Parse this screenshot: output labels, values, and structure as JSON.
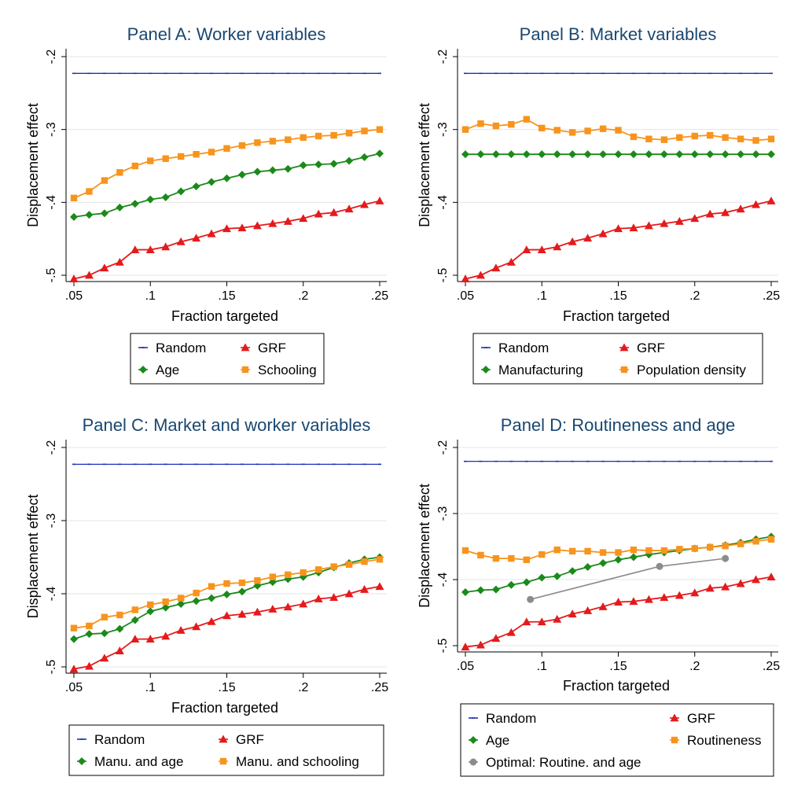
{
  "colors": {
    "Random": "#1f2fb8",
    "GRF": "#e41a1c",
    "Age": "#1a8a1a",
    "Orange": "#f7941d",
    "Optimal": "#8c8c8c",
    "grid": "#e6e6e6",
    "title": "#1a476f"
  },
  "chart_data": [
    {
      "type": "line",
      "title": "Panel A: Worker variables",
      "xlabel": "Fraction targeted",
      "ylabel": "Displacement effect",
      "xlim": [
        0.05,
        0.25
      ],
      "ylim": [
        -0.5,
        -0.2
      ],
      "xticks": [
        ".05",
        ".1",
        ".15",
        ".2",
        ".25"
      ],
      "yticks": [
        "-.2",
        "-.3",
        "-.4",
        "-.5"
      ],
      "legend": {
        "rows": [
          [
            "Random",
            "GRF"
          ],
          [
            "Age",
            "Schooling"
          ]
        ]
      },
      "series": [
        {
          "name": "Random",
          "marker": "dash",
          "color": "Random",
          "x": [
            0.05,
            0.06,
            0.07,
            0.08,
            0.09,
            0.1,
            0.11,
            0.12,
            0.13,
            0.14,
            0.15,
            0.16,
            0.17,
            0.18,
            0.19,
            0.2,
            0.21,
            0.22,
            0.23,
            0.24,
            0.25
          ],
          "y": [
            -0.223,
            -0.223,
            -0.223,
            -0.223,
            -0.223,
            -0.223,
            -0.223,
            -0.223,
            -0.223,
            -0.223,
            -0.223,
            -0.223,
            -0.223,
            -0.223,
            -0.223,
            -0.223,
            -0.223,
            -0.223,
            -0.223,
            -0.223,
            -0.223
          ]
        },
        {
          "name": "GRF",
          "marker": "triangle",
          "color": "GRF",
          "x": [
            0.05,
            0.06,
            0.07,
            0.08,
            0.09,
            0.1,
            0.11,
            0.12,
            0.13,
            0.14,
            0.15,
            0.16,
            0.17,
            0.18,
            0.19,
            0.2,
            0.21,
            0.22,
            0.23,
            0.24,
            0.25
          ],
          "y": [
            -0.505,
            -0.5,
            -0.49,
            -0.482,
            -0.465,
            -0.465,
            -0.461,
            -0.454,
            -0.449,
            -0.443,
            -0.436,
            -0.435,
            -0.432,
            -0.429,
            -0.426,
            -0.422,
            -0.416,
            -0.414,
            -0.409,
            -0.403,
            -0.398
          ]
        },
        {
          "name": "Age",
          "marker": "diamond",
          "color": "Age",
          "x": [
            0.05,
            0.06,
            0.07,
            0.08,
            0.09,
            0.1,
            0.11,
            0.12,
            0.13,
            0.14,
            0.15,
            0.16,
            0.17,
            0.18,
            0.19,
            0.2,
            0.21,
            0.22,
            0.23,
            0.24,
            0.25
          ],
          "y": [
            -0.42,
            -0.417,
            -0.415,
            -0.407,
            -0.402,
            -0.396,
            -0.393,
            -0.385,
            -0.378,
            -0.372,
            -0.367,
            -0.362,
            -0.358,
            -0.356,
            -0.354,
            -0.349,
            -0.348,
            -0.347,
            -0.343,
            -0.338,
            -0.333
          ]
        },
        {
          "name": "Schooling",
          "marker": "square",
          "color": "Orange",
          "x": [
            0.05,
            0.06,
            0.07,
            0.08,
            0.09,
            0.1,
            0.11,
            0.12,
            0.13,
            0.14,
            0.15,
            0.16,
            0.17,
            0.18,
            0.19,
            0.2,
            0.21,
            0.22,
            0.23,
            0.24,
            0.25
          ],
          "y": [
            -0.394,
            -0.385,
            -0.37,
            -0.359,
            -0.35,
            -0.343,
            -0.34,
            -0.337,
            -0.334,
            -0.331,
            -0.326,
            -0.322,
            -0.318,
            -0.316,
            -0.314,
            -0.311,
            -0.309,
            -0.308,
            -0.305,
            -0.302,
            -0.3
          ]
        }
      ]
    },
    {
      "type": "line",
      "title": "Panel B: Market variables",
      "xlabel": "Fraction targeted",
      "ylabel": "Displacement effect",
      "xlim": [
        0.05,
        0.25
      ],
      "ylim": [
        -0.5,
        -0.2
      ],
      "xticks": [
        ".05",
        ".1",
        ".15",
        ".2",
        ".25"
      ],
      "yticks": [
        "-.2",
        "-.3",
        "-.4",
        "-.5"
      ],
      "legend": {
        "rows": [
          [
            "Random",
            "GRF"
          ],
          [
            "Manufacturing",
            "Population density"
          ]
        ]
      },
      "series": [
        {
          "name": "Random",
          "marker": "dash",
          "color": "Random",
          "x": [
            0.05,
            0.06,
            0.07,
            0.08,
            0.09,
            0.1,
            0.11,
            0.12,
            0.13,
            0.14,
            0.15,
            0.16,
            0.17,
            0.18,
            0.19,
            0.2,
            0.21,
            0.22,
            0.23,
            0.24,
            0.25
          ],
          "y": [
            -0.223,
            -0.223,
            -0.223,
            -0.223,
            -0.223,
            -0.223,
            -0.223,
            -0.223,
            -0.223,
            -0.223,
            -0.223,
            -0.223,
            -0.223,
            -0.223,
            -0.223,
            -0.223,
            -0.223,
            -0.223,
            -0.223,
            -0.223,
            -0.223
          ]
        },
        {
          "name": "GRF",
          "marker": "triangle",
          "color": "GRF",
          "x": [
            0.05,
            0.06,
            0.07,
            0.08,
            0.09,
            0.1,
            0.11,
            0.12,
            0.13,
            0.14,
            0.15,
            0.16,
            0.17,
            0.18,
            0.19,
            0.2,
            0.21,
            0.22,
            0.23,
            0.24,
            0.25
          ],
          "y": [
            -0.505,
            -0.5,
            -0.49,
            -0.482,
            -0.465,
            -0.465,
            -0.461,
            -0.454,
            -0.449,
            -0.443,
            -0.436,
            -0.435,
            -0.432,
            -0.429,
            -0.426,
            -0.422,
            -0.416,
            -0.414,
            -0.409,
            -0.403,
            -0.398
          ]
        },
        {
          "name": "Manufacturing",
          "marker": "diamond",
          "color": "Age",
          "x": [
            0.05,
            0.06,
            0.07,
            0.08,
            0.09,
            0.1,
            0.11,
            0.12,
            0.13,
            0.14,
            0.15,
            0.16,
            0.17,
            0.18,
            0.19,
            0.2,
            0.21,
            0.22,
            0.23,
            0.24,
            0.25
          ],
          "y": [
            -0.334,
            -0.334,
            -0.334,
            -0.334,
            -0.334,
            -0.334,
            -0.334,
            -0.334,
            -0.334,
            -0.334,
            -0.334,
            -0.334,
            -0.334,
            -0.334,
            -0.334,
            -0.334,
            -0.334,
            -0.334,
            -0.334,
            -0.334,
            -0.334
          ]
        },
        {
          "name": "Population density",
          "marker": "square",
          "color": "Orange",
          "x": [
            0.05,
            0.06,
            0.07,
            0.08,
            0.09,
            0.1,
            0.11,
            0.12,
            0.13,
            0.14,
            0.15,
            0.16,
            0.17,
            0.18,
            0.19,
            0.2,
            0.21,
            0.22,
            0.23,
            0.24,
            0.25
          ],
          "y": [
            -0.3,
            -0.292,
            -0.295,
            -0.293,
            -0.286,
            -0.298,
            -0.301,
            -0.304,
            -0.302,
            -0.299,
            -0.301,
            -0.31,
            -0.313,
            -0.314,
            -0.311,
            -0.309,
            -0.308,
            -0.311,
            -0.313,
            -0.315,
            -0.313
          ]
        }
      ]
    },
    {
      "type": "line",
      "title": "Panel C: Market and worker variables",
      "xlabel": "Fraction targeted",
      "ylabel": "Displacement effect",
      "xlim": [
        0.05,
        0.25
      ],
      "ylim": [
        -0.5,
        -0.2
      ],
      "xticks": [
        ".05",
        ".1",
        ".15",
        ".2",
        ".25"
      ],
      "yticks": [
        "-.2",
        "-.3",
        "-.4",
        "-.5"
      ],
      "legend": {
        "rows": [
          [
            "Random",
            "GRF"
          ],
          [
            "Manu. and age",
            "Manu. and schooling"
          ]
        ]
      },
      "series": [
        {
          "name": "Random",
          "marker": "dash",
          "color": "Random",
          "x": [
            0.05,
            0.06,
            0.07,
            0.08,
            0.09,
            0.1,
            0.11,
            0.12,
            0.13,
            0.14,
            0.15,
            0.16,
            0.17,
            0.18,
            0.19,
            0.2,
            0.21,
            0.22,
            0.23,
            0.24,
            0.25
          ],
          "y": [
            -0.223,
            -0.223,
            -0.223,
            -0.223,
            -0.223,
            -0.223,
            -0.223,
            -0.223,
            -0.223,
            -0.223,
            -0.223,
            -0.223,
            -0.223,
            -0.223,
            -0.223,
            -0.223,
            -0.223,
            -0.223,
            -0.223,
            -0.223,
            -0.223
          ]
        },
        {
          "name": "GRF",
          "marker": "triangle",
          "color": "GRF",
          "x": [
            0.05,
            0.06,
            0.07,
            0.08,
            0.09,
            0.1,
            0.11,
            0.12,
            0.13,
            0.14,
            0.15,
            0.16,
            0.17,
            0.18,
            0.19,
            0.2,
            0.21,
            0.22,
            0.23,
            0.24,
            0.25
          ],
          "y": [
            -0.503,
            -0.499,
            -0.488,
            -0.478,
            -0.462,
            -0.462,
            -0.458,
            -0.45,
            -0.445,
            -0.438,
            -0.43,
            -0.428,
            -0.425,
            -0.421,
            -0.418,
            -0.414,
            -0.407,
            -0.405,
            -0.4,
            -0.394,
            -0.39
          ]
        },
        {
          "name": "Manu. and age",
          "marker": "diamond",
          "color": "Age",
          "x": [
            0.05,
            0.06,
            0.07,
            0.08,
            0.09,
            0.1,
            0.11,
            0.12,
            0.13,
            0.14,
            0.15,
            0.16,
            0.17,
            0.18,
            0.19,
            0.2,
            0.21,
            0.22,
            0.23,
            0.24,
            0.25
          ],
          "y": [
            -0.462,
            -0.455,
            -0.454,
            -0.448,
            -0.436,
            -0.424,
            -0.419,
            -0.414,
            -0.41,
            -0.406,
            -0.401,
            -0.397,
            -0.389,
            -0.384,
            -0.38,
            -0.377,
            -0.371,
            -0.364,
            -0.358,
            -0.353,
            -0.35
          ]
        },
        {
          "name": "Manu. and schooling",
          "marker": "square",
          "color": "Orange",
          "x": [
            0.05,
            0.06,
            0.07,
            0.08,
            0.09,
            0.1,
            0.11,
            0.12,
            0.13,
            0.14,
            0.15,
            0.16,
            0.17,
            0.18,
            0.19,
            0.2,
            0.21,
            0.22,
            0.23,
            0.24,
            0.25
          ],
          "y": [
            -0.447,
            -0.444,
            -0.432,
            -0.429,
            -0.422,
            -0.415,
            -0.411,
            -0.406,
            -0.399,
            -0.39,
            -0.386,
            -0.385,
            -0.382,
            -0.377,
            -0.374,
            -0.371,
            -0.367,
            -0.363,
            -0.36,
            -0.356,
            -0.353
          ]
        }
      ]
    },
    {
      "type": "line",
      "title": "Panel D: Routineness and age",
      "xlabel": "Fraction targeted",
      "ylabel": "Displacement effect",
      "xlim": [
        0.05,
        0.25
      ],
      "ylim": [
        -0.5,
        -0.2
      ],
      "xticks": [
        ".05",
        ".1",
        ".15",
        ".2",
        ".25"
      ],
      "yticks": [
        "-.2",
        "-.3",
        "-.4",
        "-.5"
      ],
      "legend": {
        "rows": [
          [
            "Random",
            "GRF"
          ],
          [
            "Age",
            "Routineness"
          ],
          [
            "Optimal: Routine. and age"
          ]
        ]
      },
      "series": [
        {
          "name": "Random",
          "marker": "dash",
          "color": "Random",
          "x": [
            0.05,
            0.06,
            0.07,
            0.08,
            0.09,
            0.1,
            0.11,
            0.12,
            0.13,
            0.14,
            0.15,
            0.16,
            0.17,
            0.18,
            0.19,
            0.2,
            0.21,
            0.22,
            0.23,
            0.24,
            0.25
          ],
          "y": [
            -0.221,
            -0.221,
            -0.221,
            -0.221,
            -0.221,
            -0.221,
            -0.221,
            -0.221,
            -0.221,
            -0.221,
            -0.221,
            -0.221,
            -0.221,
            -0.221,
            -0.221,
            -0.221,
            -0.221,
            -0.221,
            -0.221,
            -0.221,
            -0.221
          ]
        },
        {
          "name": "GRF",
          "marker": "triangle",
          "color": "GRF",
          "x": [
            0.05,
            0.06,
            0.07,
            0.08,
            0.09,
            0.1,
            0.11,
            0.12,
            0.13,
            0.14,
            0.15,
            0.16,
            0.17,
            0.18,
            0.19,
            0.2,
            0.21,
            0.22,
            0.23,
            0.24,
            0.25
          ],
          "y": [
            -0.502,
            -0.499,
            -0.489,
            -0.48,
            -0.464,
            -0.464,
            -0.46,
            -0.452,
            -0.447,
            -0.441,
            -0.434,
            -0.433,
            -0.43,
            -0.427,
            -0.424,
            -0.42,
            -0.413,
            -0.411,
            -0.406,
            -0.4,
            -0.396
          ]
        },
        {
          "name": "Age",
          "marker": "diamond",
          "color": "Age",
          "x": [
            0.05,
            0.06,
            0.07,
            0.08,
            0.09,
            0.1,
            0.11,
            0.12,
            0.13,
            0.14,
            0.15,
            0.16,
            0.17,
            0.18,
            0.19,
            0.2,
            0.21,
            0.22,
            0.23,
            0.24,
            0.25
          ],
          "y": [
            -0.419,
            -0.416,
            -0.415,
            -0.408,
            -0.404,
            -0.397,
            -0.395,
            -0.387,
            -0.381,
            -0.375,
            -0.37,
            -0.366,
            -0.362,
            -0.359,
            -0.356,
            -0.353,
            -0.351,
            -0.348,
            -0.344,
            -0.339,
            -0.335
          ]
        },
        {
          "name": "Routineness",
          "marker": "square",
          "color": "Orange",
          "x": [
            0.05,
            0.06,
            0.07,
            0.08,
            0.09,
            0.1,
            0.11,
            0.12,
            0.13,
            0.14,
            0.15,
            0.16,
            0.17,
            0.18,
            0.19,
            0.2,
            0.21,
            0.22,
            0.23,
            0.24,
            0.25
          ],
          "y": [
            -0.356,
            -0.363,
            -0.368,
            -0.368,
            -0.37,
            -0.362,
            -0.355,
            -0.357,
            -0.357,
            -0.359,
            -0.359,
            -0.355,
            -0.356,
            -0.356,
            -0.354,
            -0.353,
            -0.351,
            -0.349,
            -0.346,
            -0.342,
            -0.339
          ]
        },
        {
          "name": "Optimal: Routine. and age",
          "marker": "circle",
          "color": "Optimal",
          "x": [
            0.0925,
            0.177,
            0.22
          ],
          "y": [
            -0.43,
            -0.38,
            -0.368
          ]
        }
      ]
    }
  ]
}
